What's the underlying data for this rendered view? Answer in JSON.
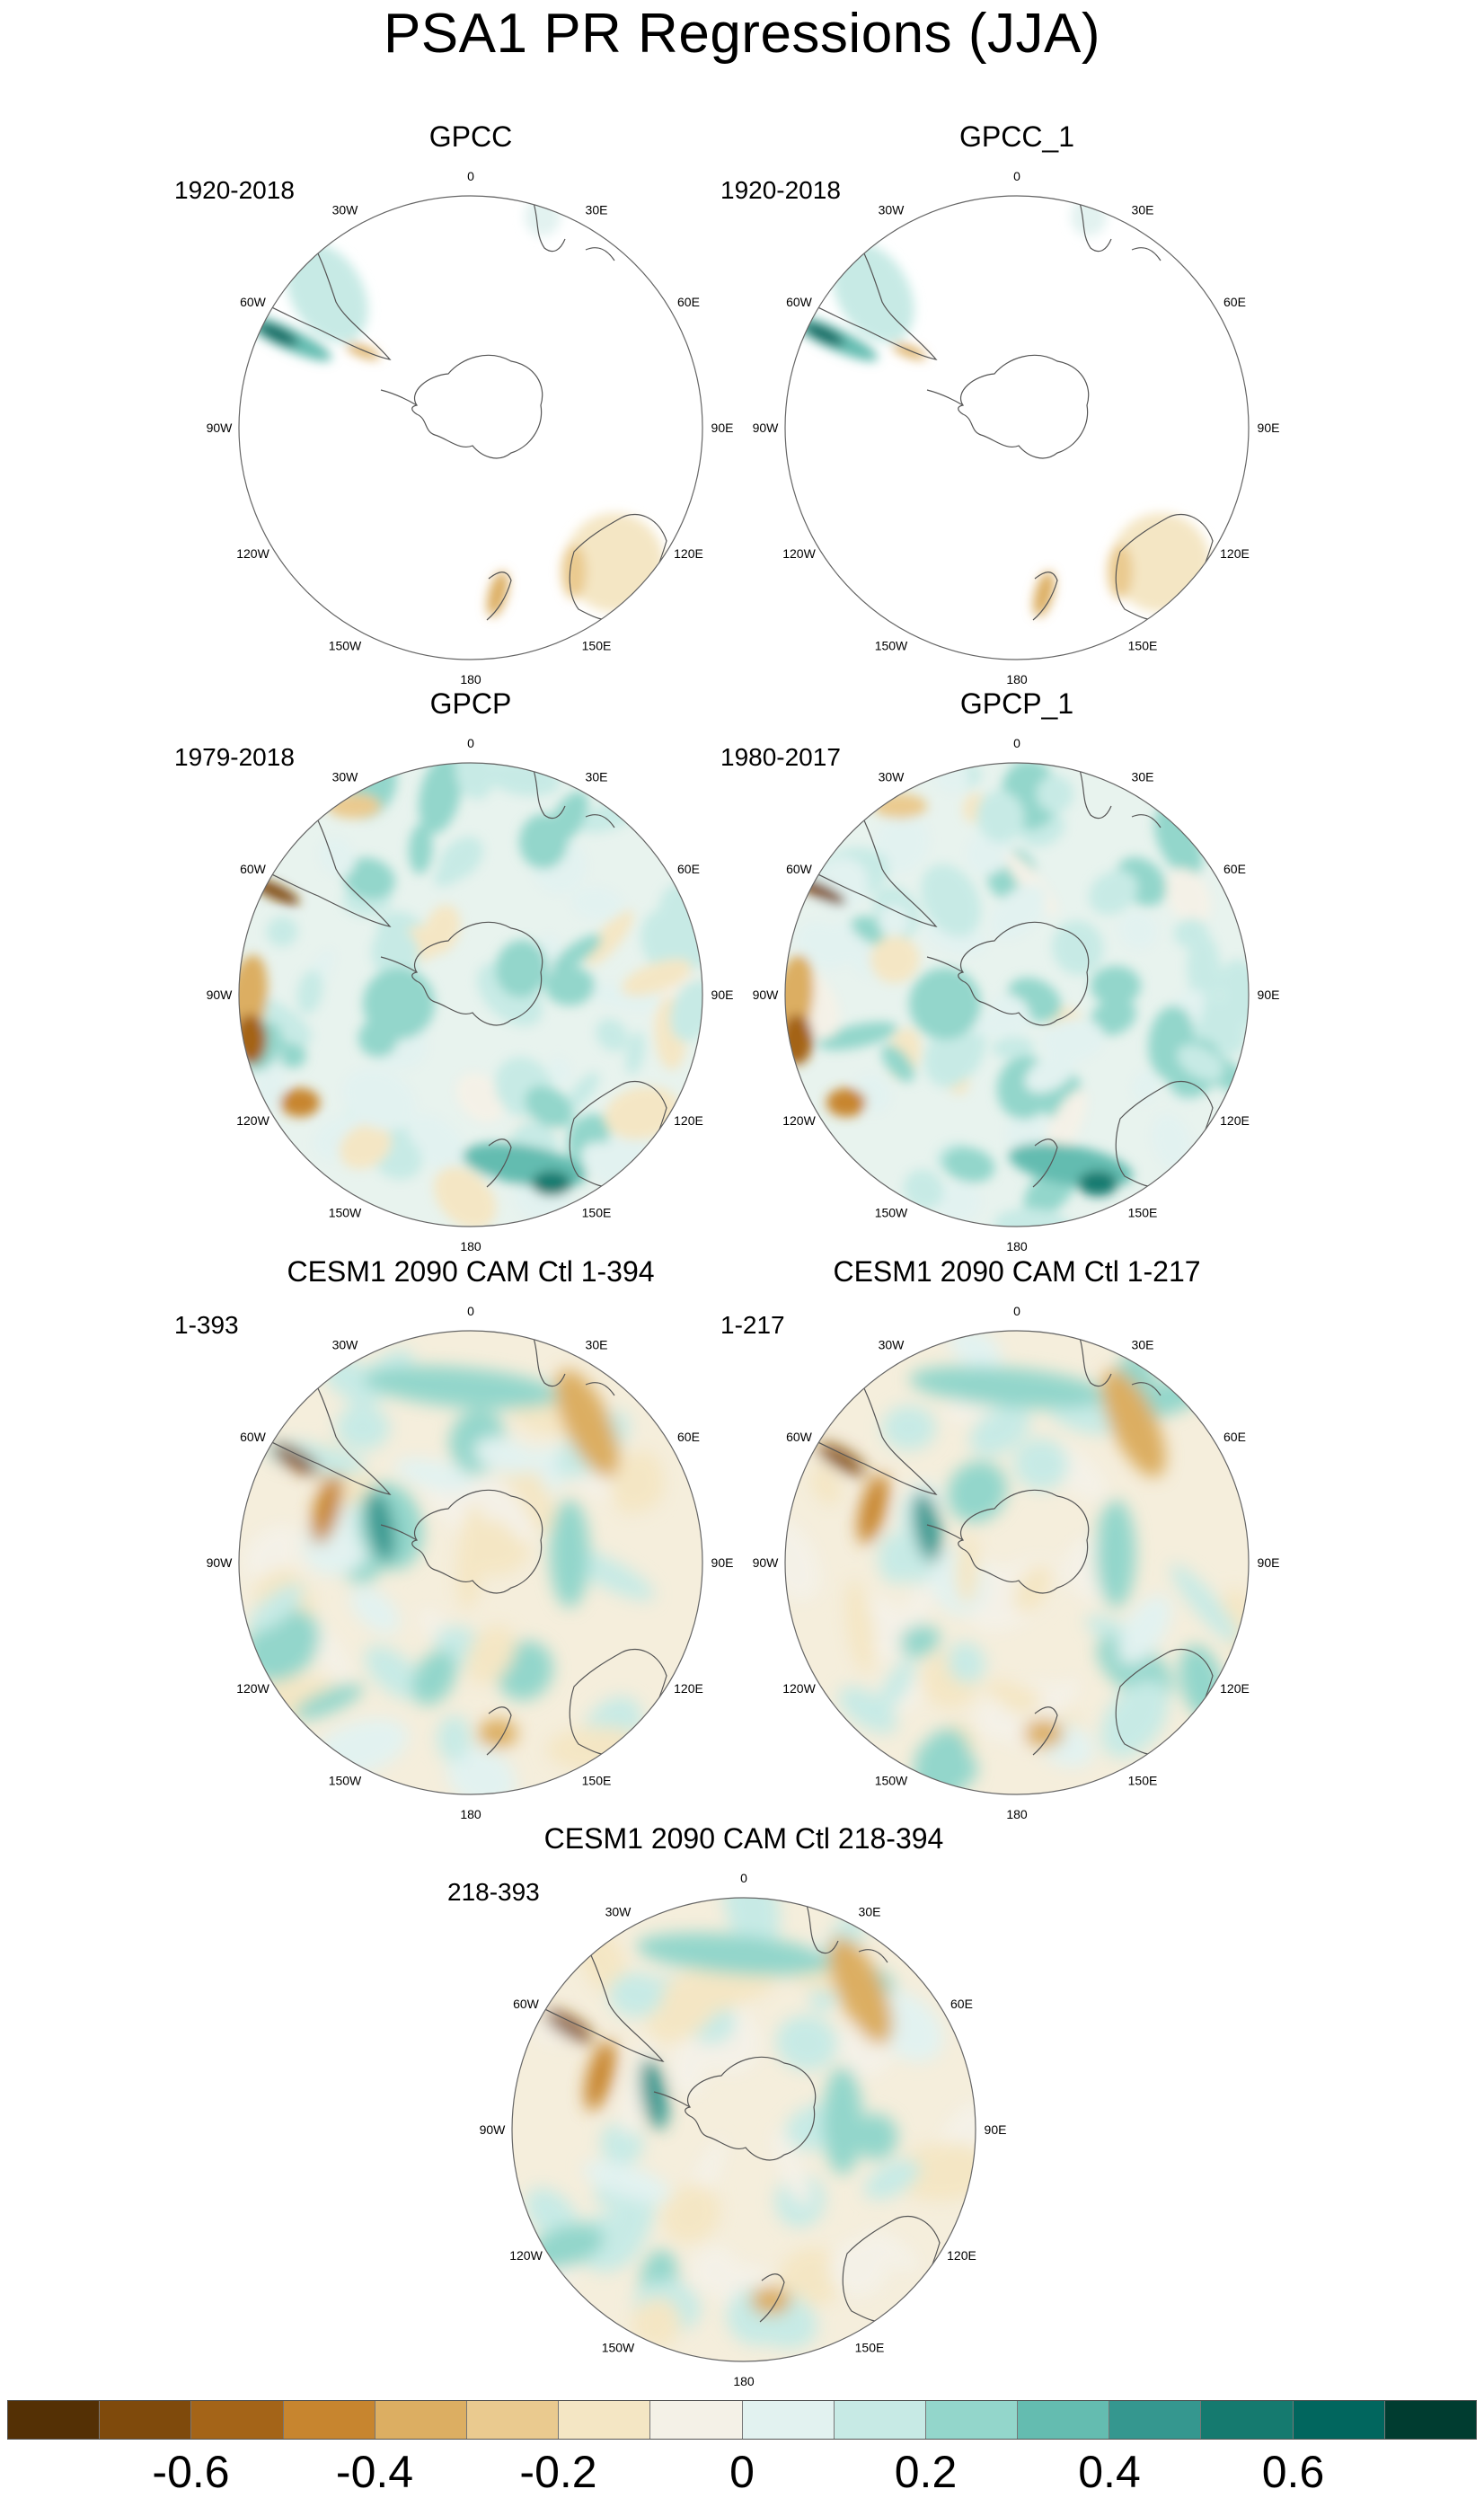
{
  "title": "PSA1 PR Regressions (JJA)",
  "longitude_labels": [
    "0",
    "30E",
    "60E",
    "90E",
    "120E",
    "150E",
    "180",
    "150W",
    "120W",
    "90W",
    "60W",
    "30W"
  ],
  "panels": [
    {
      "title": "GPCC",
      "period": "1920-2018",
      "style": "sparse"
    },
    {
      "title": "GPCC_1",
      "period": "1920-2018",
      "style": "sparse"
    },
    {
      "title": "GPCP",
      "period": "1979-2018",
      "style": "full"
    },
    {
      "title": "GPCP_1",
      "period": "1980-2017",
      "style": "full"
    },
    {
      "title": "CESM1 2090 CAM Ctl 1-394",
      "period": "1-393",
      "style": "model"
    },
    {
      "title": "CESM1 2090 CAM Ctl 1-217",
      "period": "1-217",
      "style": "model"
    },
    {
      "title": "CESM1 2090 CAM Ctl 218-394",
      "period": "218-393",
      "style": "model"
    }
  ],
  "colorbar": {
    "colors": [
      "#543005",
      "#7f4a0c",
      "#a46418",
      "#c7852f",
      "#dcae62",
      "#eaca8f",
      "#f4e6c4",
      "#f4f1e7",
      "#e2f2f0",
      "#c7eae5",
      "#93d6cb",
      "#64bcb0",
      "#35978f",
      "#157a6f",
      "#01665e",
      "#003c30"
    ],
    "tick_labels": [
      "-0.6",
      "-0.4",
      "-0.2",
      "0",
      "0.2",
      "0.4",
      "0.6"
    ]
  }
}
